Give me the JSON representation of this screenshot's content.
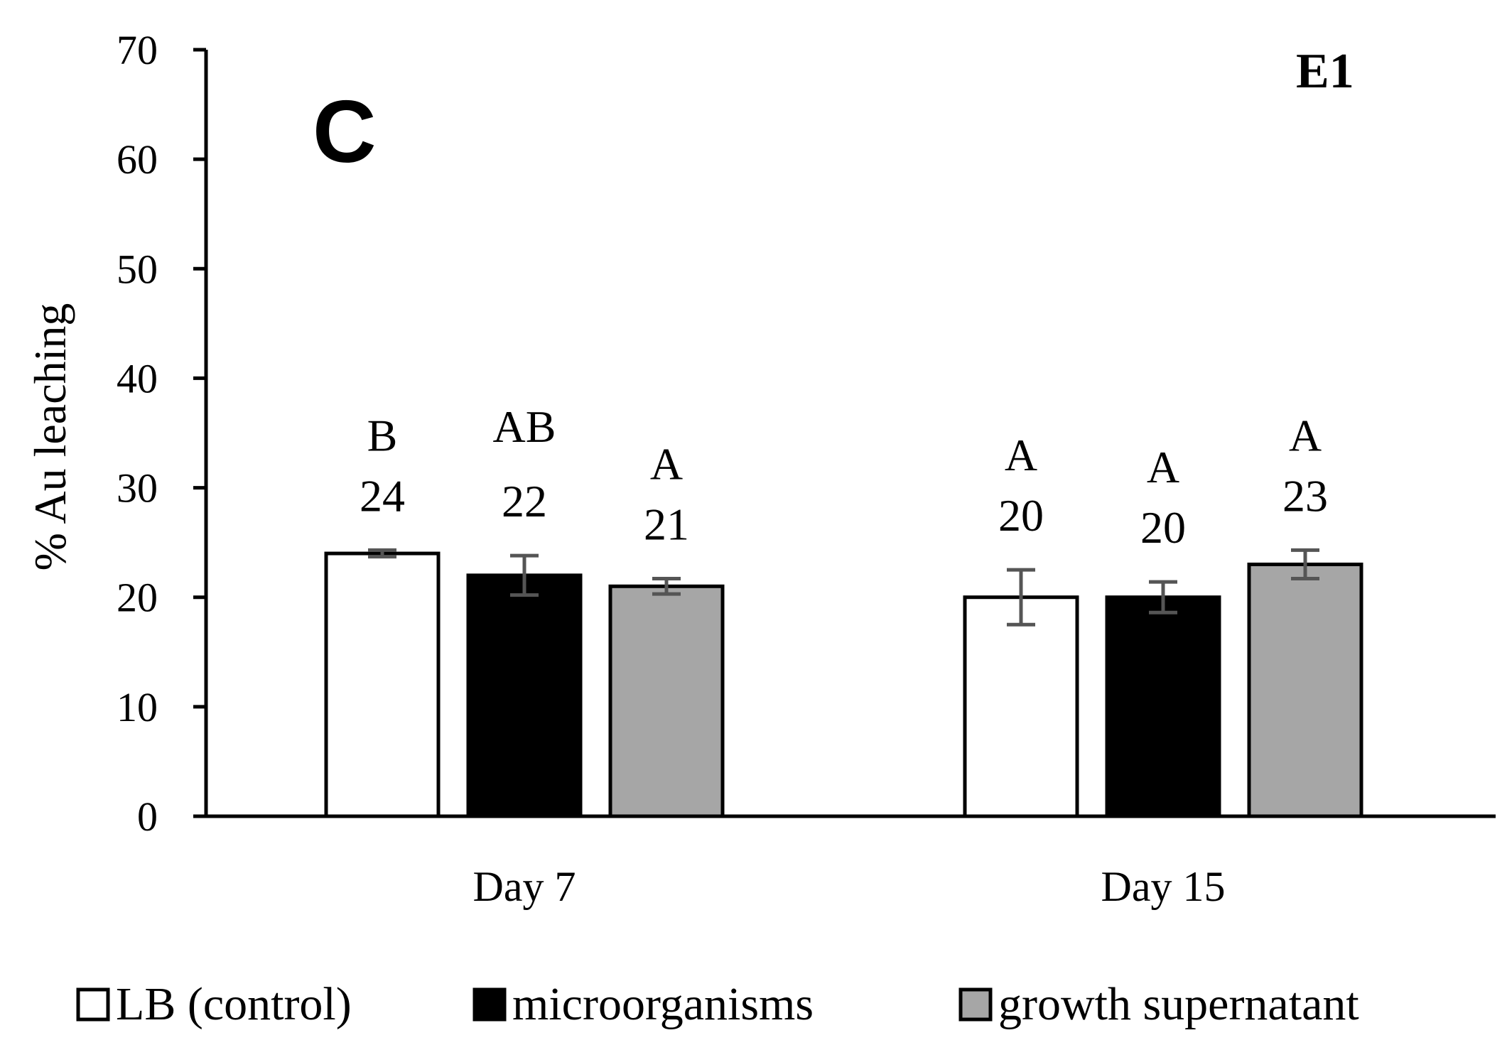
{
  "chart_data": {
    "type": "bar",
    "panel_label": "C",
    "experiment_label": "E1",
    "ylabel": "% Au leaching",
    "xlabel": "",
    "ylim": [
      0,
      70
    ],
    "yticks": [
      0,
      10,
      20,
      30,
      40,
      50,
      60,
      70
    ],
    "categories": [
      "Day 7",
      "Day 15"
    ],
    "series": [
      {
        "name": "LB (control)",
        "color": "#ffffff",
        "values": [
          24,
          20
        ],
        "errors": [
          0.3,
          2.5
        ],
        "labels": [
          "24",
          "20"
        ],
        "letters": [
          "B",
          "A"
        ]
      },
      {
        "name": "microorganisms",
        "color": "#000000",
        "values": [
          22,
          20
        ],
        "errors": [
          1.8,
          1.4
        ],
        "labels": [
          "22",
          "20"
        ],
        "letters": [
          "AB",
          "A"
        ]
      },
      {
        "name": "growth supernatant",
        "color": "#a6a6a6",
        "values": [
          21,
          23
        ],
        "errors": [
          0.7,
          1.3
        ],
        "labels": [
          "21",
          "23"
        ],
        "letters": [
          "A",
          "A"
        ]
      }
    ],
    "legend_position": "bottom"
  }
}
